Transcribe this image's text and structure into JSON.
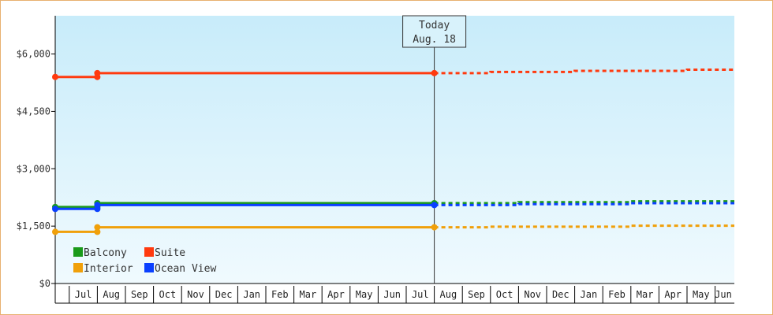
{
  "chart_data": {
    "type": "line",
    "title": "",
    "xlabel": "",
    "ylabel": "",
    "ylim": [
      0,
      7000
    ],
    "y_ticks": [
      {
        "value": 0,
        "label": "$0"
      },
      {
        "value": 1500,
        "label": "$1,500"
      },
      {
        "value": 3000,
        "label": "$3,000"
      },
      {
        "value": 4500,
        "label": "$4,500"
      },
      {
        "value": 6000,
        "label": "$6,000"
      }
    ],
    "months": [
      "Jul",
      "Aug",
      "Sep",
      "Oct",
      "Nov",
      "Dec",
      "Jan",
      "Feb",
      "Mar",
      "Apr",
      "May",
      "Jun",
      "Jul",
      "Aug",
      "Sep",
      "Oct",
      "Nov",
      "Dec",
      "Jan",
      "Feb",
      "Mar",
      "Apr",
      "May",
      "Jun"
    ],
    "today": {
      "line1": "Today",
      "line2": "Aug. 18",
      "month_index": 13.5
    },
    "legend": {
      "placement": "bottom-left"
    },
    "series": [
      {
        "name": "Suite",
        "color": "#ff3a0f",
        "points": [
          [
            0,
            5400
          ],
          [
            1.5,
            5400
          ],
          [
            1.5,
            5500
          ],
          [
            13.5,
            5500
          ]
        ],
        "markers": [
          0,
          1,
          2,
          3
        ],
        "forecast": [
          [
            13.5,
            5500
          ],
          [
            15.5,
            5500
          ],
          [
            15.5,
            5530
          ],
          [
            18.5,
            5530
          ],
          [
            18.5,
            5560
          ],
          [
            22.5,
            5560
          ],
          [
            22.5,
            5590
          ],
          [
            25,
            5590
          ]
        ]
      },
      {
        "name": "Balcony",
        "color": "#1a9a1a",
        "points": [
          [
            0,
            2000
          ],
          [
            1.5,
            2000
          ],
          [
            1.5,
            2100
          ],
          [
            13.5,
            2100
          ]
        ],
        "markers": [
          0,
          1,
          2,
          3
        ],
        "forecast": [
          [
            13.5,
            2100
          ],
          [
            16.5,
            2100
          ],
          [
            16.5,
            2125
          ],
          [
            20.5,
            2125
          ],
          [
            20.5,
            2150
          ],
          [
            25,
            2150
          ]
        ]
      },
      {
        "name": "Ocean View",
        "color": "#0a40ff",
        "points": [
          [
            0,
            1950
          ],
          [
            1.5,
            1950
          ],
          [
            1.5,
            2050
          ],
          [
            13.5,
            2050
          ]
        ],
        "markers": [
          0,
          1,
          2,
          3
        ],
        "forecast": [
          [
            13.5,
            2050
          ],
          [
            16.5,
            2050
          ],
          [
            16.5,
            2075
          ],
          [
            20.5,
            2075
          ],
          [
            20.5,
            2100
          ],
          [
            25,
            2100
          ]
        ]
      },
      {
        "name": "Interior",
        "color": "#f0a00a",
        "points": [
          [
            0,
            1350
          ],
          [
            1.5,
            1350
          ],
          [
            1.5,
            1470
          ],
          [
            13.5,
            1470
          ]
        ],
        "markers": [
          0,
          1,
          2,
          3
        ],
        "forecast": [
          [
            13.5,
            1470
          ],
          [
            15.5,
            1470
          ],
          [
            15.5,
            1485
          ],
          [
            20.5,
            1485
          ],
          [
            20.5,
            1510
          ],
          [
            25,
            1510
          ]
        ]
      }
    ],
    "legend_order": [
      "Balcony",
      "Suite",
      "Interior",
      "Ocean View"
    ]
  }
}
